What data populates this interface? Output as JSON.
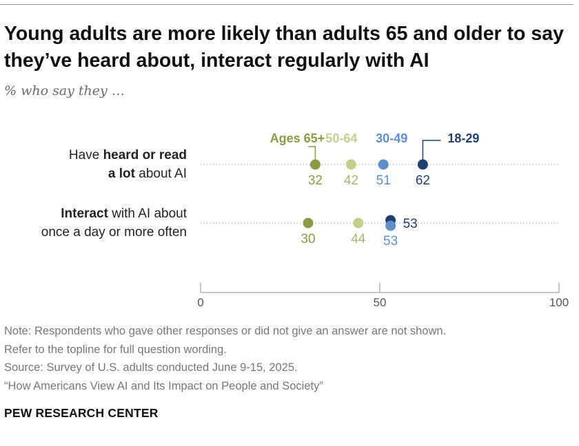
{
  "title": "Young adults are more likely than adults 65 and older to say they’ve heard about, interact regularly with AI",
  "subtitle": "% who say they …",
  "colors": {
    "ages_65_plus": "#8a9a45",
    "ages_50_64": "#c3cf8f",
    "ages_30_49": "#5f8fc9",
    "ages_18_29": "#1f3f6e",
    "grid": "#999999"
  },
  "chart_data": {
    "type": "dot",
    "xlim": [
      0,
      100
    ],
    "xticks": [
      "0",
      "50",
      "100"
    ],
    "legend": [
      "Ages 65+",
      "50-64",
      "30-49",
      "18-29"
    ],
    "rows": [
      {
        "label_lines": [
          [
            {
              "text": "Have ",
              "bold": false
            },
            {
              "text": "heard or read",
              "bold": true
            }
          ],
          [
            {
              "text": "a lot",
              "bold": true
            },
            {
              "text": " about AI",
              "bold": false
            }
          ]
        ],
        "values": [
          32,
          42,
          51,
          62
        ]
      },
      {
        "label_lines": [
          [
            {
              "text": "Interact",
              "bold": true
            },
            {
              "text": " with AI about",
              "bold": false
            }
          ],
          [
            {
              "text": "once a day or more often",
              "bold": false
            }
          ]
        ],
        "values": [
          30,
          44,
          53,
          53
        ]
      }
    ]
  },
  "notes": [
    "Note: Respondents who gave other responses or did not give an answer are not shown.",
    "Refer to the topline for full question wording.",
    "Source: Survey of U.S. adults conducted June 9-15, 2025.",
    "“How Americans View AI and Its Impact on People and Society”"
  ],
  "brand": "PEW RESEARCH CENTER"
}
